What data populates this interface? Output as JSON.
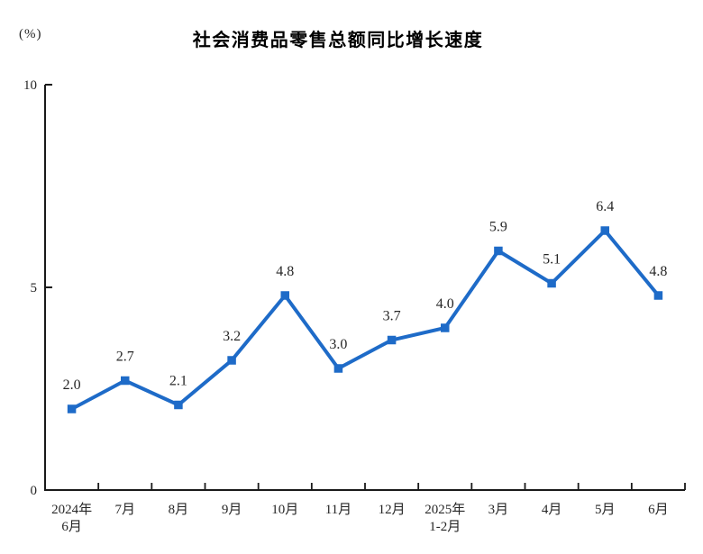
{
  "header": {
    "unit_label": "(%)",
    "title": "社会消费品零售总额同比增长速度"
  },
  "chart_data": {
    "type": "line",
    "title": "社会消费品零售总额同比增长速度",
    "xlabel": "",
    "ylabel": "(%)",
    "categories": [
      "2024年\n6月",
      "7月",
      "8月",
      "9月",
      "10月",
      "11月",
      "12月",
      "2025年\n1-2月",
      "3月",
      "4月",
      "5月",
      "6月"
    ],
    "values": [
      2.0,
      2.7,
      2.1,
      3.2,
      4.8,
      3.0,
      3.7,
      4.0,
      5.9,
      5.1,
      6.4,
      4.8
    ],
    "value_labels": [
      "2.0",
      "2.7",
      "2.1",
      "3.2",
      "4.8",
      "3.0",
      "3.7",
      "4.0",
      "5.9",
      "5.1",
      "6.4",
      "4.8"
    ],
    "ylim": [
      0,
      10
    ],
    "yticks": [
      0,
      5,
      10
    ],
    "grid": false,
    "legend": "none",
    "marker": "square",
    "colors": {
      "line": "#1e6bc8",
      "axis": "#1a1a1a",
      "text": "#262626",
      "background": "#ffffff"
    }
  }
}
